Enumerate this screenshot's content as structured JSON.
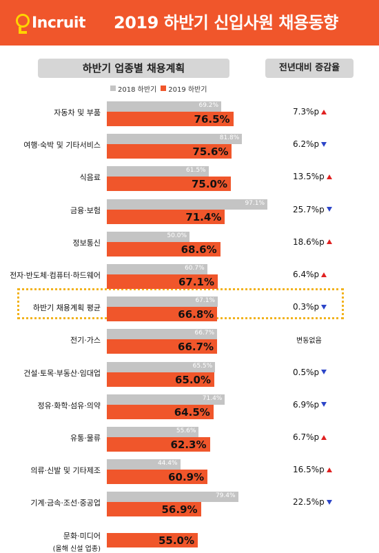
{
  "header": {
    "logo_text": "Incruit",
    "title": "2019 하반기 신입사원 채용동향",
    "colors": {
      "brand": "#f0562b",
      "logo_accent": "#ffd400"
    }
  },
  "panels": {
    "left_title": "하반기 업종별 채용계획",
    "right_title": "전년대비 증감율"
  },
  "chart_data": {
    "type": "bar",
    "orientation": "horizontal",
    "series": [
      {
        "name": "2018 하반기",
        "color": "#c4c4c4"
      },
      {
        "name": "2019 하반기",
        "color": "#f0562b"
      }
    ],
    "xlim": [
      0,
      100
    ],
    "rows": [
      {
        "category": "자동차 및 부품",
        "v2018": 69.2,
        "v2018_label": "69.2%",
        "v2019": 76.5,
        "v2019_label": "76.5%",
        "change": "7.3%p",
        "direction": "up"
      },
      {
        "category": "여행·숙박 및 기타서비스",
        "v2018": 81.8,
        "v2018_label": "81.8%",
        "v2019": 75.6,
        "v2019_label": "75.6%",
        "change": "6.2%p",
        "direction": "down"
      },
      {
        "category": "식음료",
        "v2018": 61.5,
        "v2018_label": "61.5%",
        "v2019": 75.0,
        "v2019_label": "75.0%",
        "change": "13.5%p",
        "direction": "up"
      },
      {
        "category": "금융·보험",
        "v2018": 97.1,
        "v2018_label": "97.1%",
        "v2019": 71.4,
        "v2019_label": "71.4%",
        "change": "25.7%p",
        "direction": "down"
      },
      {
        "category": "정보통신",
        "v2018": 50.0,
        "v2018_label": "50.0%",
        "v2019": 68.6,
        "v2019_label": "68.6%",
        "change": "18.6%p",
        "direction": "up"
      },
      {
        "category": "전자·반도체·컴퓨터·하드웨어",
        "v2018": 60.7,
        "v2018_label": "60.7%",
        "v2019": 67.1,
        "v2019_label": "67.1%",
        "change": "6.4%p",
        "direction": "up"
      },
      {
        "category": "하반기 채용계획 평균",
        "v2018": 67.1,
        "v2018_label": "67.1%",
        "v2019": 66.8,
        "v2019_label": "66.8%",
        "change": "0.3%p",
        "direction": "down",
        "highlight": true
      },
      {
        "category": "전기·가스",
        "v2018": 66.7,
        "v2018_label": "66.7%",
        "v2019": 66.7,
        "v2019_label": "66.7%",
        "change": "변동없음",
        "direction": "none"
      },
      {
        "category": "건설·토목·부동산·임대업",
        "v2018": 65.5,
        "v2018_label": "65.5%",
        "v2019": 65.0,
        "v2019_label": "65.0%",
        "change": "0.5%p",
        "direction": "down"
      },
      {
        "category": "정유·화학·섬유·의약",
        "v2018": 71.4,
        "v2018_label": "71.4%",
        "v2019": 64.5,
        "v2019_label": "64.5%",
        "change": "6.9%p",
        "direction": "down"
      },
      {
        "category": "유통·물류",
        "v2018": 55.6,
        "v2018_label": "55.6%",
        "v2019": 62.3,
        "v2019_label": "62.3%",
        "change": "6.7%p",
        "direction": "up"
      },
      {
        "category": "의류·신발 및 기타제조",
        "v2018": 44.4,
        "v2018_label": "44.4%",
        "v2019": 60.9,
        "v2019_label": "60.9%",
        "change": "16.5%p",
        "direction": "up"
      },
      {
        "category": "기계·금속·조선·중공업",
        "v2018": 79.4,
        "v2018_label": "79.4%",
        "v2019": 56.9,
        "v2019_label": "56.9%",
        "change": "22.5%p",
        "direction": "down"
      },
      {
        "category": "문화·미디어",
        "category_note": "(올해 신설 업종)",
        "v2018": null,
        "v2019": 55.0,
        "v2019_label": "55.0%",
        "change": "",
        "direction": "none"
      }
    ]
  }
}
